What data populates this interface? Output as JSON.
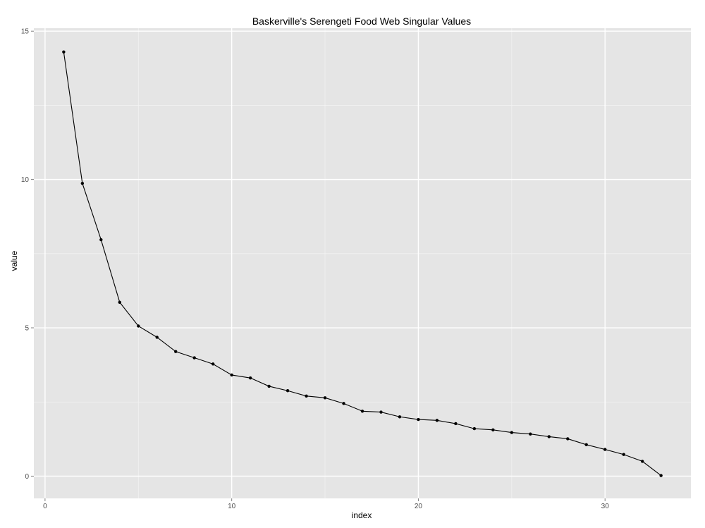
{
  "chart_data": {
    "type": "line",
    "title": "Baskerville's Serengeti Food Web Singular Values",
    "xlabel": "index",
    "ylabel": "value",
    "xlim": [
      -0.6,
      34.6
    ],
    "ylim": [
      -0.75,
      15.1
    ],
    "x_ticks": [
      0,
      10,
      20,
      30
    ],
    "y_ticks": [
      0,
      5,
      10,
      15
    ],
    "x_tick_labels": [
      "0",
      "10",
      "20",
      "30"
    ],
    "y_tick_labels": [
      "0",
      "5",
      "10",
      "15"
    ],
    "grid": true,
    "panel_background": "#e5e5e5",
    "grid_color": "#ffffff",
    "line_color": "#000000",
    "x": [
      1,
      2,
      3,
      4,
      5,
      6,
      7,
      8,
      9,
      10,
      11,
      12,
      13,
      14,
      15,
      16,
      17,
      18,
      19,
      20,
      21,
      22,
      23,
      24,
      25,
      26,
      27,
      28,
      29,
      30,
      31,
      32,
      33
    ],
    "y": [
      14.3,
      9.87,
      7.97,
      5.86,
      5.06,
      4.68,
      4.2,
      3.99,
      3.78,
      3.41,
      3.31,
      3.03,
      2.88,
      2.7,
      2.64,
      2.45,
      2.19,
      2.16,
      2.0,
      1.91,
      1.88,
      1.77,
      1.6,
      1.56,
      1.47,
      1.42,
      1.33,
      1.26,
      1.06,
      0.9,
      0.73,
      0.5,
      0.02
    ]
  }
}
